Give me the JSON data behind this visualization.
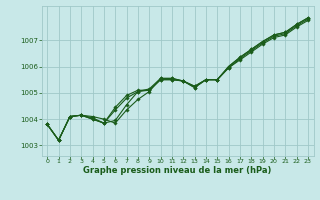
{
  "xlabel": "Graphe pression niveau de la mer (hPa)",
  "background_color": "#c8e8e8",
  "grid_color": "#a0c8c8",
  "line_color": "#1a5c1a",
  "marker_color": "#1a5c1a",
  "xlim": [
    -0.5,
    23.5
  ],
  "ylim": [
    1002.6,
    1008.3
  ],
  "xticks": [
    0,
    1,
    2,
    3,
    4,
    5,
    6,
    7,
    8,
    9,
    10,
    11,
    12,
    13,
    14,
    15,
    16,
    17,
    18,
    19,
    20,
    21,
    22,
    23
  ],
  "yticks": [
    1003,
    1004,
    1005,
    1006,
    1007
  ],
  "series": [
    [
      1003.8,
      1003.2,
      1004.1,
      1004.15,
      1004.1,
      1004.0,
      1003.85,
      1004.35,
      1004.75,
      1005.05,
      1005.55,
      1005.55,
      1005.45,
      1005.25,
      1005.5,
      1005.5,
      1005.95,
      1006.25,
      1006.55,
      1006.85,
      1007.1,
      1007.2,
      1007.5,
      1007.75
    ],
    [
      1003.8,
      1003.2,
      1004.1,
      1004.15,
      1004.05,
      1003.85,
      1003.95,
      1004.55,
      1005.05,
      1005.15,
      1005.55,
      1005.55,
      1005.45,
      1005.25,
      1005.5,
      1005.5,
      1005.95,
      1006.3,
      1006.6,
      1006.9,
      1007.15,
      1007.25,
      1007.55,
      1007.8
    ],
    [
      1003.8,
      1003.2,
      1004.1,
      1004.15,
      1004.0,
      1003.85,
      1004.45,
      1004.9,
      1005.1,
      1005.1,
      1005.5,
      1005.5,
      1005.45,
      1005.2,
      1005.5,
      1005.5,
      1006.0,
      1006.35,
      1006.65,
      1006.95,
      1007.2,
      1007.3,
      1007.6,
      1007.85
    ],
    [
      1003.8,
      1003.2,
      1004.1,
      1004.15,
      1004.0,
      1003.85,
      1004.35,
      1004.8,
      1005.05,
      1005.1,
      1005.5,
      1005.5,
      1005.45,
      1005.2,
      1005.5,
      1005.5,
      1006.0,
      1006.35,
      1006.65,
      1006.95,
      1007.2,
      1007.3,
      1007.6,
      1007.85
    ]
  ]
}
